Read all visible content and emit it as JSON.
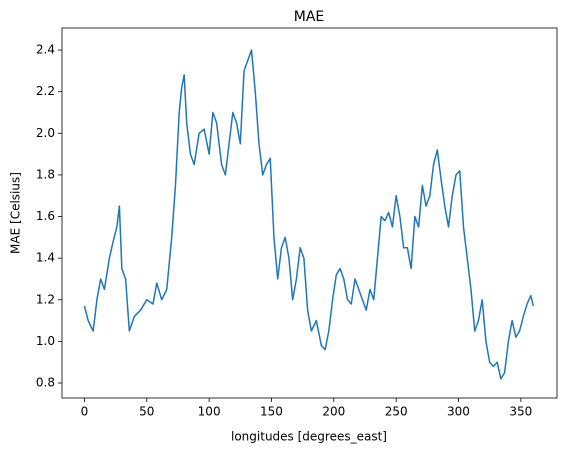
{
  "chart_data": {
    "type": "line",
    "title": "MAE",
    "xlabel": "longitudes [degrees_east]",
    "ylabel": "MAE [Celsius]",
    "x": [
      0,
      3,
      7,
      10,
      13,
      16,
      20,
      23,
      26,
      28,
      30,
      33,
      36,
      40,
      45,
      50,
      55,
      58,
      62,
      66,
      70,
      73,
      76,
      78,
      80,
      82,
      85,
      88,
      92,
      96,
      100,
      103,
      106,
      110,
      113,
      116,
      119,
      122,
      125,
      128,
      131,
      134,
      137,
      140,
      143,
      146,
      149,
      152,
      155,
      158,
      161,
      164,
      167,
      170,
      173,
      176,
      179,
      182,
      186,
      190,
      193,
      196,
      199,
      202,
      205,
      208,
      211,
      214,
      217,
      220,
      223,
      226,
      229,
      232,
      235,
      238,
      241,
      244,
      247,
      250,
      253,
      256,
      259,
      262,
      265,
      268,
      271,
      274,
      277,
      280,
      283,
      286,
      289,
      292,
      295,
      298,
      301,
      304,
      307,
      310,
      313,
      316,
      319,
      322,
      325,
      328,
      331,
      334,
      337,
      340,
      343,
      346,
      349,
      352,
      355,
      358,
      360
    ],
    "series": [
      {
        "name": "MAE",
        "color": "#1f77b4",
        "values": [
          1.17,
          1.1,
          1.05,
          1.2,
          1.3,
          1.25,
          1.4,
          1.48,
          1.55,
          1.65,
          1.35,
          1.3,
          1.05,
          1.12,
          1.15,
          1.2,
          1.18,
          1.28,
          1.2,
          1.25,
          1.5,
          1.75,
          2.1,
          2.22,
          2.28,
          2.05,
          1.9,
          1.85,
          2.0,
          2.02,
          1.9,
          2.1,
          2.05,
          1.85,
          1.8,
          1.95,
          2.1,
          2.05,
          1.95,
          2.3,
          2.35,
          2.4,
          2.2,
          1.95,
          1.8,
          1.85,
          1.88,
          1.5,
          1.3,
          1.45,
          1.5,
          1.4,
          1.2,
          1.3,
          1.45,
          1.4,
          1.15,
          1.05,
          1.1,
          0.98,
          0.96,
          1.05,
          1.2,
          1.32,
          1.35,
          1.3,
          1.2,
          1.18,
          1.3,
          1.25,
          1.2,
          1.15,
          1.25,
          1.2,
          1.4,
          1.6,
          1.58,
          1.62,
          1.55,
          1.7,
          1.6,
          1.45,
          1.45,
          1.35,
          1.6,
          1.55,
          1.75,
          1.65,
          1.7,
          1.85,
          1.92,
          1.78,
          1.65,
          1.55,
          1.7,
          1.8,
          1.82,
          1.55,
          1.4,
          1.25,
          1.05,
          1.1,
          1.2,
          1.0,
          0.9,
          0.88,
          0.9,
          0.82,
          0.85,
          1.0,
          1.1,
          1.02,
          1.05,
          1.12,
          1.18,
          1.22,
          1.17
        ]
      }
    ],
    "xlim": [
      -18,
      379
    ],
    "ylim": [
      0.728,
      2.506
    ],
    "xticks": [
      0,
      50,
      100,
      150,
      200,
      250,
      300,
      350
    ],
    "yticks": [
      {
        "value": 0.8,
        "label": "0.8"
      },
      {
        "value": 1.0,
        "label": "1.0"
      },
      {
        "value": 1.2,
        "label": "1.2"
      },
      {
        "value": 1.4,
        "label": "1.4"
      },
      {
        "value": 1.6,
        "label": "1.6"
      },
      {
        "value": 1.8,
        "label": "1.8"
      },
      {
        "value": 2.0,
        "label": "2.0"
      },
      {
        "value": 2.2,
        "label": "2.2"
      },
      {
        "value": 2.4,
        "label": "2.4"
      }
    ],
    "grid": false
  }
}
